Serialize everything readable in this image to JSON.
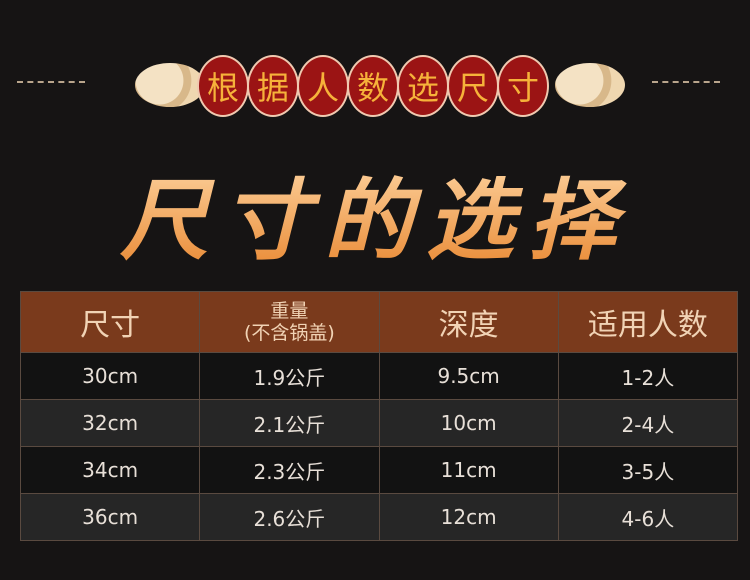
{
  "banner": {
    "chars": [
      "根",
      "据",
      "人",
      "数",
      "选",
      "尺",
      "寸"
    ]
  },
  "title": "尺寸的选择",
  "table": {
    "headers": [
      "尺寸",
      "重量",
      "深度",
      "适用人数"
    ],
    "weight_note": "(不含锅盖)",
    "rows": [
      [
        "30cm",
        "1.9公斤",
        "9.5cm",
        "1-2人"
      ],
      [
        "32cm",
        "2.1公斤",
        "10cm",
        "2-4人"
      ],
      [
        "34cm",
        "2.3公斤",
        "11cm",
        "3-5人"
      ],
      [
        "36cm",
        "2.6公斤",
        "12cm",
        "4-6人"
      ]
    ]
  },
  "colors": {
    "header_bg": "#7a3a1c",
    "coin": "#9b1414",
    "title": "#f0a14a"
  }
}
